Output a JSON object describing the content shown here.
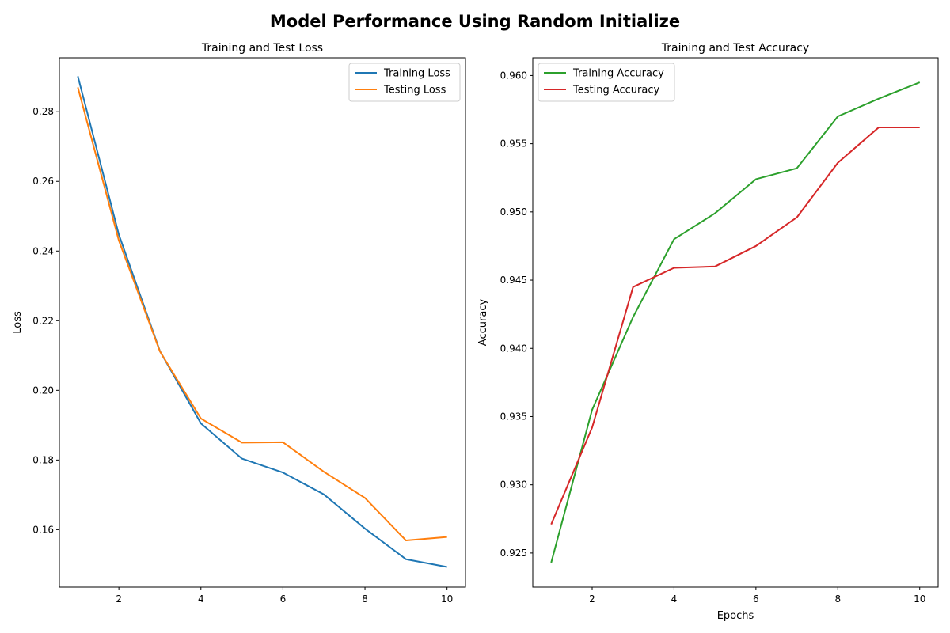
{
  "suptitle": "Model Performance Using Random Initialize",
  "chart_data": [
    {
      "type": "line",
      "title": "Training and Test Loss",
      "xlabel": "",
      "ylabel": "Loss",
      "x": [
        1,
        2,
        3,
        4,
        5,
        6,
        7,
        8,
        9,
        10
      ],
      "xlim": [
        0.55,
        10.45
      ],
      "ylim": [
        0.1435,
        0.2955
      ],
      "xticks": [
        2,
        4,
        6,
        8,
        10
      ],
      "xtick_labels": [
        "2",
        "4",
        "6",
        "8",
        "10"
      ],
      "yticks": [
        0.16,
        0.18,
        0.2,
        0.22,
        0.24,
        0.26,
        0.28
      ],
      "ytick_labels": [
        "0.16",
        "0.18",
        "0.20",
        "0.22",
        "0.24",
        "0.26",
        "0.28"
      ],
      "grid": false,
      "legend": "top-right",
      "series": [
        {
          "name": "Training Loss",
          "color": "#1f77b4",
          "values": [
            0.2902,
            0.2447,
            0.2113,
            0.1905,
            0.1804,
            0.1764,
            0.1701,
            0.1603,
            0.1515,
            0.1493
          ]
        },
        {
          "name": "Testing Loss",
          "color": "#ff7f0e",
          "values": [
            0.287,
            0.243,
            0.2112,
            0.1919,
            0.185,
            0.1851,
            0.1766,
            0.1691,
            0.1569,
            0.1579
          ]
        }
      ]
    },
    {
      "type": "line",
      "title": "Training and Test Accuracy",
      "xlabel": "Epochs",
      "ylabel": "Accuracy",
      "x": [
        1,
        2,
        3,
        4,
        5,
        6,
        7,
        8,
        9,
        10
      ],
      "xlim": [
        0.55,
        10.45
      ],
      "ylim": [
        0.9225,
        0.9613
      ],
      "xticks": [
        2,
        4,
        6,
        8,
        10
      ],
      "xtick_labels": [
        "2",
        "4",
        "6",
        "8",
        "10"
      ],
      "yticks": [
        0.925,
        0.93,
        0.935,
        0.94,
        0.945,
        0.95,
        0.955,
        0.96
      ],
      "ytick_labels": [
        "0.925",
        "0.930",
        "0.935",
        "0.940",
        "0.945",
        "0.950",
        "0.955",
        "0.960"
      ],
      "grid": false,
      "legend": "top-left",
      "series": [
        {
          "name": "Training Accuracy",
          "color": "#2ca02c",
          "values": [
            0.9243,
            0.9355,
            0.9423,
            0.948,
            0.9499,
            0.9524,
            0.9532,
            0.957,
            0.9583,
            0.9595
          ]
        },
        {
          "name": "Testing Accuracy",
          "color": "#d62728",
          "values": [
            0.9271,
            0.9342,
            0.9445,
            0.9459,
            0.946,
            0.9475,
            0.9496,
            0.9536,
            0.9562,
            0.9562
          ]
        }
      ]
    }
  ]
}
